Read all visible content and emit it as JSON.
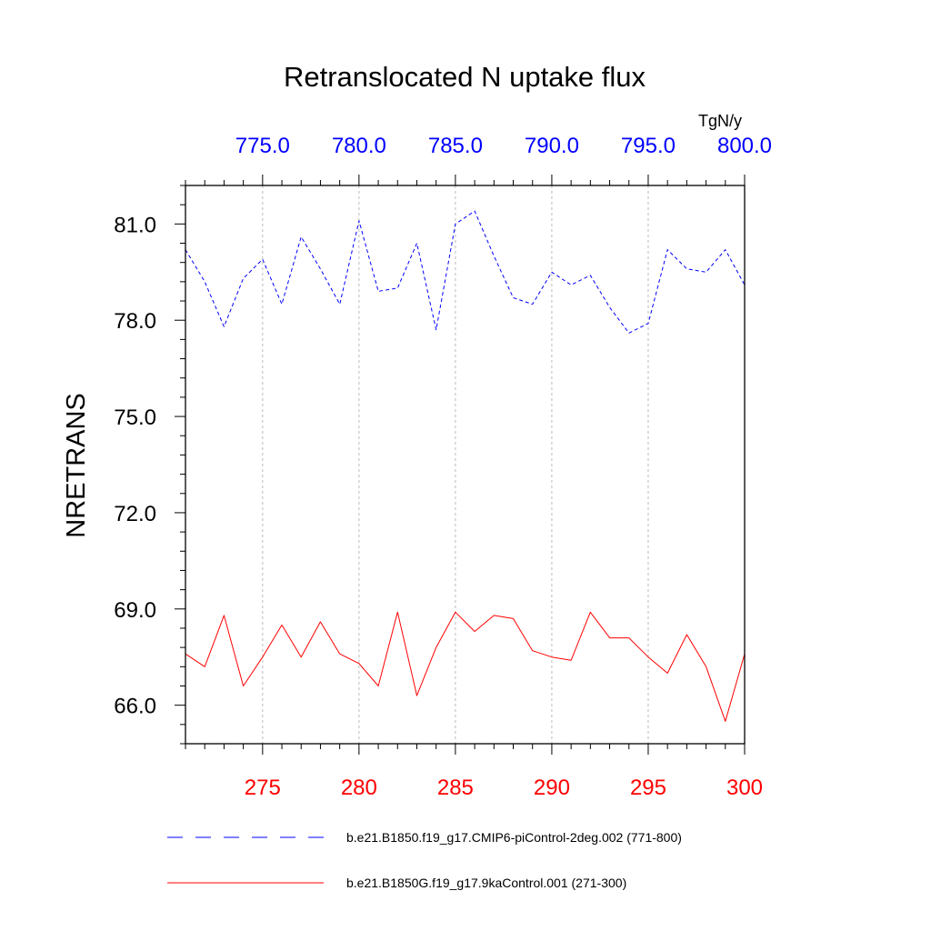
{
  "chart_data": {
    "type": "line",
    "title": "Retranslocated N uptake flux",
    "ylabel": "NRETRANS",
    "units": "TgN/y",
    "ylim": [
      64.8,
      82.2
    ],
    "yticks": [
      66,
      69,
      72,
      75,
      78,
      81
    ],
    "ytick_labels": [
      "66.0",
      "69.0",
      "72.0",
      "75.0",
      "78.0",
      "81.0"
    ],
    "x_bottom": {
      "range": [
        271,
        300
      ],
      "ticks": [
        275,
        280,
        285,
        290,
        295,
        300
      ],
      "tick_labels": [
        "275",
        "280",
        "285",
        "290",
        "295",
        "300"
      ],
      "color": "#ff0000"
    },
    "x_top": {
      "range": [
        771,
        800
      ],
      "ticks": [
        775,
        780,
        785,
        790,
        795,
        800
      ],
      "tick_labels": [
        "775.0",
        "780.0",
        "785.0",
        "790.0",
        "795.0",
        "800.0"
      ],
      "color": "#0000ff"
    },
    "grid": "vertical dashed at major x ticks",
    "series": [
      {
        "name": "b.e21.B1850.f19_g17.CMIP6-piControl-2deg.002 (771-800)",
        "axis": "top",
        "color": "#0000ff",
        "style": "dashed",
        "x": [
          771,
          772,
          773,
          774,
          775,
          776,
          777,
          778,
          779,
          780,
          781,
          782,
          783,
          784,
          785,
          786,
          787,
          788,
          789,
          790,
          791,
          792,
          793,
          794,
          795,
          796,
          797,
          798,
          799,
          800
        ],
        "values": [
          80.2,
          79.2,
          77.8,
          79.3,
          79.9,
          78.5,
          80.6,
          79.6,
          78.5,
          81.1,
          78.9,
          79.0,
          80.4,
          77.7,
          81.0,
          81.4,
          80.0,
          78.7,
          78.5,
          79.5,
          79.1,
          79.4,
          78.4,
          77.6,
          77.9,
          80.2,
          79.6,
          79.5,
          80.2,
          79.1
        ]
      },
      {
        "name": "b.e21.B1850G.f19_g17.9kaControl.001 (271-300)",
        "axis": "bottom",
        "color": "#ff0000",
        "style": "solid",
        "x": [
          271,
          272,
          273,
          274,
          275,
          276,
          277,
          278,
          279,
          280,
          281,
          282,
          283,
          284,
          285,
          286,
          287,
          288,
          289,
          290,
          291,
          292,
          293,
          294,
          295,
          296,
          297,
          298,
          299,
          300
        ],
        "values": [
          67.6,
          67.2,
          68.8,
          66.6,
          67.5,
          68.5,
          67.5,
          68.6,
          67.6,
          67.3,
          66.6,
          68.9,
          66.3,
          67.8,
          68.9,
          68.3,
          68.8,
          68.7,
          67.7,
          67.5,
          67.4,
          68.9,
          68.1,
          68.1,
          67.5,
          67.0,
          68.2,
          67.2,
          65.5,
          67.6
        ]
      }
    ],
    "legend": [
      {
        "label": "b.e21.B1850.f19_g17.CMIP6-piControl-2deg.002 (771-800)",
        "style": "dashed",
        "color": "#0000ff"
      },
      {
        "label": "b.e21.B1850G.f19_g17.9kaControl.001 (271-300)",
        "style": "solid",
        "color": "#ff0000"
      }
    ],
    "legend_position": "bottom"
  }
}
